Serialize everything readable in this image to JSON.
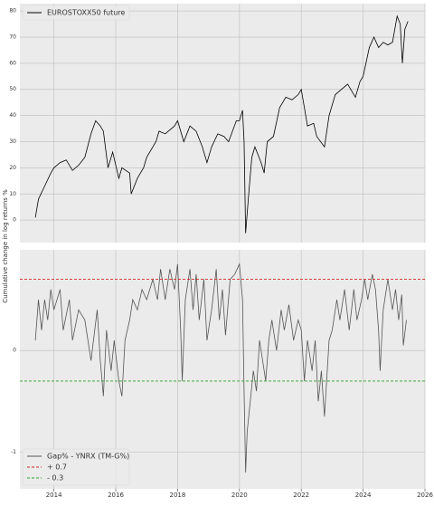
{
  "figure": {
    "ylabel": "Cumulative change in log returns %"
  },
  "chart_data": [
    {
      "type": "line",
      "legend": "upper left",
      "grid": true,
      "show_xtick_labels": false,
      "xlim": [
        2012.9,
        2026.0
      ],
      "xticks": [
        2014,
        2016,
        2018,
        2020,
        2022,
        2024,
        2026
      ],
      "ylim": [
        -8.6,
        82.8
      ],
      "yticks": [
        0,
        10,
        20,
        30,
        40,
        50,
        60,
        70,
        80
      ],
      "x": [
        2013.4,
        2013.5,
        2013.7,
        2013.9,
        2014.0,
        2014.2,
        2014.4,
        2014.6,
        2014.8,
        2015.0,
        2015.2,
        2015.35,
        2015.5,
        2015.6,
        2015.75,
        2015.9,
        2016.1,
        2016.2,
        2016.45,
        2016.5,
        2016.7,
        2016.9,
        2017.0,
        2017.3,
        2017.4,
        2017.6,
        2017.9,
        2018.0,
        2018.2,
        2018.4,
        2018.6,
        2018.8,
        2018.95,
        2019.1,
        2019.3,
        2019.5,
        2019.65,
        2019.9,
        2020.0,
        2020.1,
        2020.15,
        2020.2,
        2020.3,
        2020.4,
        2020.5,
        2020.7,
        2020.8,
        2020.9,
        2021.1,
        2021.3,
        2021.5,
        2021.7,
        2021.9,
        2022.0,
        2022.2,
        2022.4,
        2022.5,
        2022.75,
        2022.9,
        2023.1,
        2023.3,
        2023.5,
        2023.75,
        2023.9,
        2024.0,
        2024.2,
        2024.35,
        2024.5,
        2024.65,
        2024.8,
        2024.95,
        2025.1,
        2025.2,
        2025.27,
        2025.35,
        2025.45
      ],
      "series": [
        {
          "name": "EUROSTOXX50 future",
          "color": "#000000",
          "style": "solid",
          "values": [
            1,
            8,
            13,
            18,
            20,
            22,
            23,
            19,
            21,
            24,
            33,
            38,
            36,
            34,
            20,
            26,
            16,
            20,
            18,
            10,
            16,
            20,
            24,
            30,
            34,
            33,
            36,
            38,
            30,
            36,
            34,
            28,
            22,
            28,
            33,
            32,
            30,
            38,
            38,
            42,
            30,
            -5,
            10,
            24,
            28,
            22,
            18,
            30,
            32,
            43,
            47,
            46,
            48,
            50,
            36,
            37,
            32,
            28,
            40,
            48,
            50,
            52,
            47,
            53,
            55,
            66,
            70,
            66,
            68,
            67,
            68,
            78,
            75,
            60,
            73,
            76
          ]
        }
      ]
    },
    {
      "type": "line",
      "legend": "lower left",
      "grid": true,
      "show_xtick_labels": true,
      "xlim": [
        2012.9,
        2026.0
      ],
      "xticks": [
        2014,
        2016,
        2018,
        2020,
        2022,
        2024,
        2026
      ],
      "ylim": [
        -1.36,
        0.99
      ],
      "yticks": [
        -1,
        0
      ],
      "x": [
        2013.4,
        2013.5,
        2013.6,
        2013.7,
        2013.8,
        2013.9,
        2014.0,
        2014.2,
        2014.3,
        2014.5,
        2014.6,
        2014.8,
        2015.0,
        2015.1,
        2015.2,
        2015.4,
        2015.5,
        2015.6,
        2015.7,
        2015.85,
        2015.95,
        2016.1,
        2016.2,
        2016.3,
        2016.45,
        2016.55,
        2016.7,
        2016.85,
        2017.0,
        2017.2,
        2017.35,
        2017.45,
        2017.6,
        2017.75,
        2017.9,
        2018.0,
        2018.1,
        2018.15,
        2018.25,
        2018.4,
        2018.5,
        2018.6,
        2018.7,
        2018.85,
        2018.95,
        2019.1,
        2019.25,
        2019.35,
        2019.45,
        2019.55,
        2019.7,
        2019.85,
        2020.0,
        2020.1,
        2020.15,
        2020.2,
        2020.25,
        2020.35,
        2020.45,
        2020.55,
        2020.65,
        2020.75,
        2020.85,
        2020.95,
        2021.05,
        2021.2,
        2021.35,
        2021.45,
        2021.6,
        2021.75,
        2021.9,
        2022.0,
        2022.1,
        2022.2,
        2022.35,
        2022.45,
        2022.55,
        2022.65,
        2022.75,
        2022.9,
        2023.0,
        2023.15,
        2023.25,
        2023.4,
        2023.55,
        2023.7,
        2023.8,
        2023.95,
        2024.05,
        2024.15,
        2024.3,
        2024.4,
        2024.5,
        2024.55,
        2024.65,
        2024.8,
        2024.95,
        2025.05,
        2025.15,
        2025.25,
        2025.3,
        2025.4
      ],
      "series": [
        {
          "name": "Gap% - YNRX (TM-G%)",
          "color": "#555555",
          "style": "solid",
          "values": [
            0.1,
            0.5,
            0.2,
            0.5,
            0.3,
            0.6,
            0.4,
            0.6,
            0.2,
            0.5,
            0.1,
            0.4,
            0.3,
            0.1,
            -0.1,
            0.4,
            -0.1,
            -0.45,
            0.2,
            -0.2,
            0.1,
            -0.3,
            -0.45,
            0.1,
            0.3,
            0.5,
            0.4,
            0.6,
            0.5,
            0.7,
            0.5,
            0.8,
            0.5,
            0.8,
            0.6,
            0.85,
            0.2,
            -0.3,
            0.5,
            0.8,
            0.4,
            0.75,
            0.3,
            0.7,
            0.1,
            0.4,
            0.8,
            0.3,
            0.6,
            0.15,
            0.7,
            0.75,
            0.85,
            0.5,
            -0.4,
            -1.2,
            -0.8,
            -0.5,
            -0.2,
            -0.4,
            0.1,
            -0.1,
            -0.3,
            0.1,
            0.3,
            0.0,
            0.4,
            0.2,
            0.45,
            0.1,
            0.3,
            0.2,
            -0.3,
            0.1,
            -0.2,
            0.1,
            -0.5,
            -0.2,
            -0.65,
            0.1,
            0.2,
            0.5,
            0.3,
            0.6,
            0.2,
            0.6,
            0.3,
            0.5,
            0.7,
            0.5,
            0.75,
            0.6,
            0.2,
            -0.2,
            0.4,
            0.7,
            0.4,
            0.6,
            0.3,
            0.55,
            0.05,
            0.3
          ]
        }
      ],
      "hlines": [
        {
          "name": "+ 0.7",
          "value": 0.7,
          "color": "#d62728",
          "style": "dashed"
        },
        {
          "name": "- 0.3",
          "value": -0.3,
          "color": "#2ca02c",
          "style": "dashed"
        }
      ]
    }
  ]
}
